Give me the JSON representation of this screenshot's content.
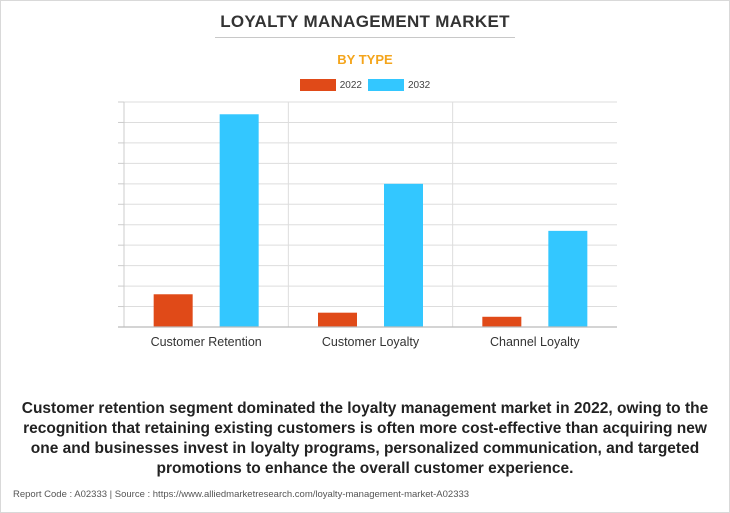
{
  "title": "LOYALTY MANAGEMENT MARKET",
  "subtitle": "BY TYPE",
  "colors": {
    "series_2022": "#e04a18",
    "series_2032": "#33c7ff",
    "subtitle": "#f4a51c",
    "grid": "#dddddd"
  },
  "chart_data": {
    "type": "bar",
    "categories": [
      "Customer Retention",
      "Customer Loyalty",
      "Channel Loyalty"
    ],
    "series": [
      {
        "name": "2022",
        "values": [
          1.6,
          0.7,
          0.5
        ]
      },
      {
        "name": "2032",
        "values": [
          10.4,
          7.0,
          4.7
        ]
      }
    ],
    "ylim": [
      0,
      11
    ],
    "grid": true,
    "legend_position": "top-center",
    "xlabel": "",
    "ylabel": ""
  },
  "summary": "Customer retention segment dominated the loyalty management market in 2022, owing to the recognition that retaining existing customers is often more cost-effective than acquiring new one and businesses invest in loyalty programs, personalized communication, and targeted promotions to enhance the overall customer experience.",
  "footer": "Report Code : A02333  |  Source : https://www.alliedmarketresearch.com/loyalty-management-market-A02333"
}
